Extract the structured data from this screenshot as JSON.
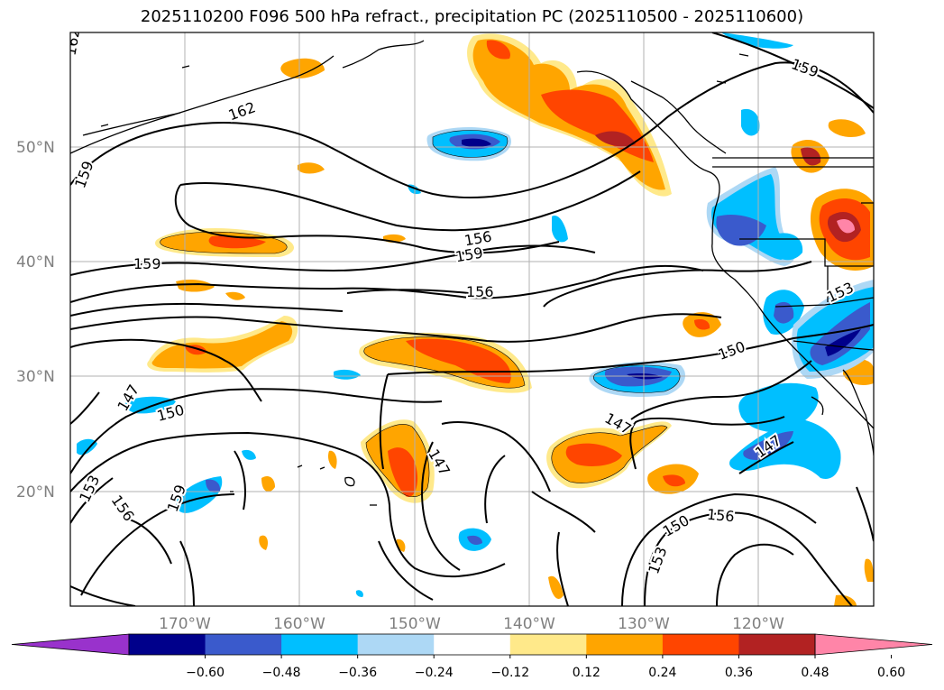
{
  "title": "2025110200 F096 500 hPa refract., precipitation PC (2025110500 - 2025110600)",
  "map": {
    "lat_labels": [
      "50°N",
      "40°N",
      "30°N",
      "20°N"
    ],
    "lon_labels": [
      "170°W",
      "160°W",
      "150°W",
      "140°W",
      "130°W",
      "120°W"
    ],
    "contour_labels": [
      "162",
      "159",
      "162",
      "159",
      "156",
      "159",
      "159",
      "156",
      "153",
      "150",
      "147",
      "150",
      "147",
      "147",
      "153",
      "156",
      "159",
      "150",
      "153",
      "156",
      "147"
    ]
  },
  "colorbar": {
    "ticks": [
      "−0.60",
      "−0.48",
      "−0.36",
      "−0.24",
      "−0.12",
      "0.12",
      "0.24",
      "0.36",
      "0.48",
      "0.60"
    ],
    "colors": [
      "#9932cc",
      "#00008b",
      "#3a5acc",
      "#00bfff",
      "#add8f5",
      "#ffffff",
      "#ffe98a",
      "#ffa500",
      "#ff4500",
      "#b22222",
      "#ff85a8"
    ]
  }
}
